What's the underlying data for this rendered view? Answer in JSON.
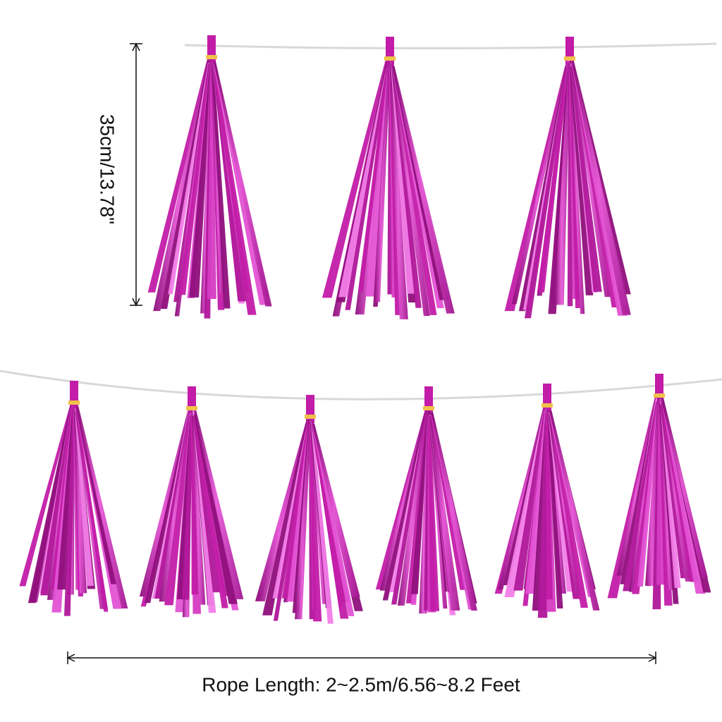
{
  "height_label": "35cm/13.78\"",
  "rope_label": "Rope Length: 2~2.5m/6.56~8.2 Feet"
}
